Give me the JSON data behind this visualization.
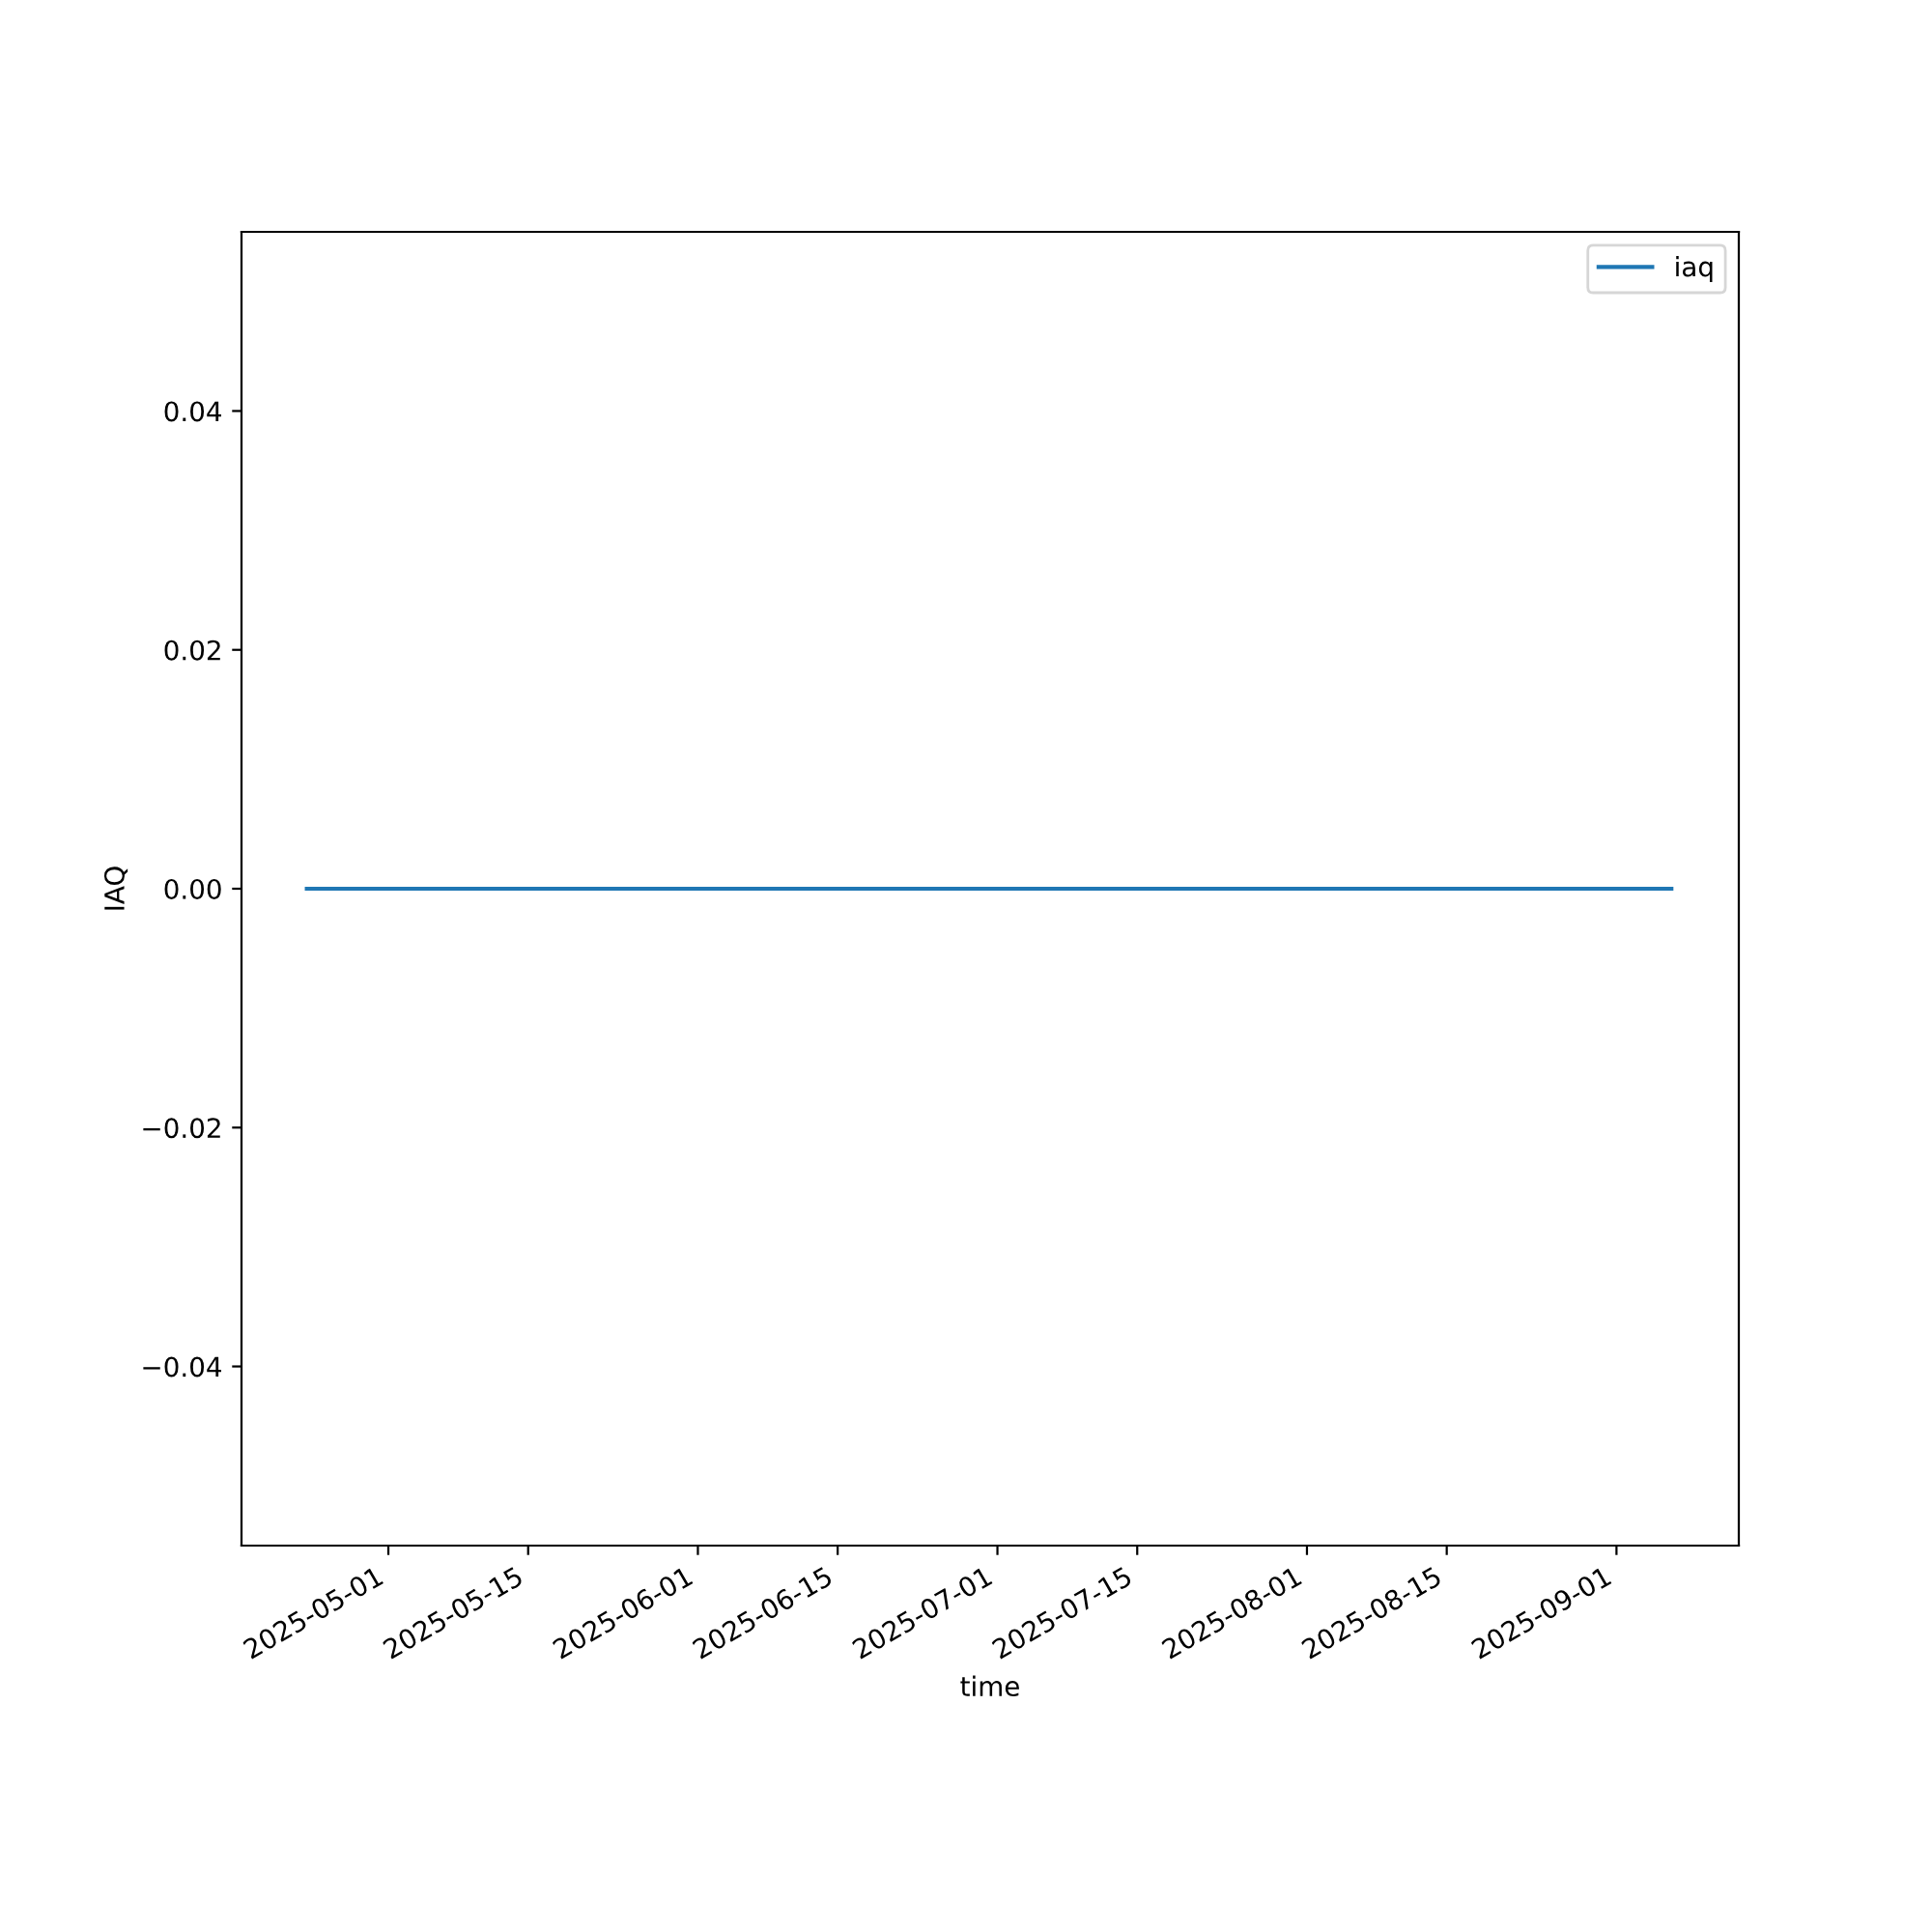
{
  "chart_data": {
    "type": "line",
    "xlabel": "time",
    "ylabel": "IAQ",
    "x": [
      "2025-04-22T20:00",
      "2025-09-06T12:00"
    ],
    "series": [
      {
        "name": "iaq",
        "color": "#1f77b4",
        "values": [
          0,
          0
        ]
      }
    ],
    "xlim": [
      "2025-04-16T07:00",
      "2025-09-13T06:00"
    ],
    "xticks": [
      {
        "value": "2025-05-01",
        "label": "2025-05-01"
      },
      {
        "value": "2025-05-15",
        "label": "2025-05-15"
      },
      {
        "value": "2025-06-01",
        "label": "2025-06-01"
      },
      {
        "value": "2025-06-15",
        "label": "2025-06-15"
      },
      {
        "value": "2025-07-01",
        "label": "2025-07-01"
      },
      {
        "value": "2025-07-15",
        "label": "2025-07-15"
      },
      {
        "value": "2025-08-01",
        "label": "2025-08-01"
      },
      {
        "value": "2025-08-15",
        "label": "2025-08-15"
      },
      {
        "value": "2025-09-01",
        "label": "2025-09-01"
      }
    ],
    "ylim": [
      -0.055,
      0.055
    ],
    "yticks": [
      {
        "value": -0.04,
        "label": "−0.04"
      },
      {
        "value": -0.02,
        "label": "−0.02"
      },
      {
        "value": 0,
        "label": "0.00"
      },
      {
        "value": 0.02,
        "label": "0.02"
      },
      {
        "value": 0.04,
        "label": "0.04"
      }
    ],
    "legend": "top right",
    "grid": false,
    "marker": "none",
    "line_style": "solid"
  }
}
